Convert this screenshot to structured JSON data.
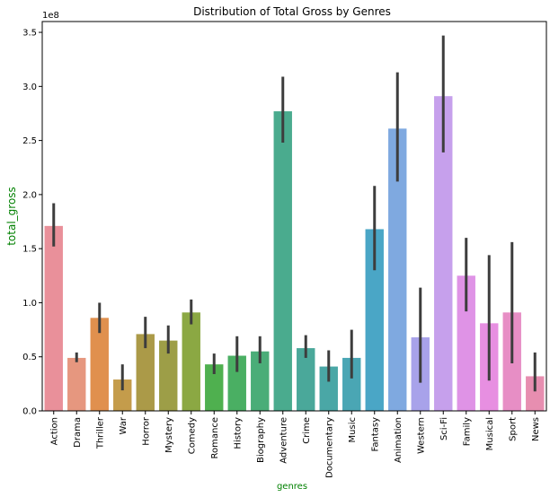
{
  "chart_data": {
    "type": "bar",
    "title": "Distribution of Total Gross by Genres",
    "xlabel": "genres",
    "ylabel": "total_gross",
    "offset_text": "1e8",
    "ylim": [
      0,
      3.6
    ],
    "yticks": [
      0.0,
      0.5,
      1.0,
      1.5,
      2.0,
      2.5,
      3.0,
      3.5
    ],
    "grid": false,
    "legend": "none",
    "categories": [
      "Action",
      "Drama",
      "Thriller",
      "War",
      "Horror",
      "Mystery",
      "Comedy",
      "Romance",
      "History",
      "Biography",
      "Adventure",
      "Crime",
      "Documentary",
      "Music",
      "Fantasy",
      "Animation",
      "Western",
      "Sci-Fi",
      "Family",
      "Musical",
      "Sport",
      "News"
    ],
    "values": [
      1.71,
      0.49,
      0.86,
      0.29,
      0.71,
      0.65,
      0.91,
      0.43,
      0.51,
      0.55,
      2.77,
      0.58,
      0.41,
      0.49,
      1.68,
      2.61,
      0.68,
      2.91,
      1.25,
      0.81,
      0.91,
      0.32
    ],
    "ci_low": [
      1.52,
      0.45,
      0.72,
      0.19,
      0.58,
      0.53,
      0.8,
      0.34,
      0.36,
      0.44,
      2.48,
      0.49,
      0.27,
      0.3,
      1.3,
      2.12,
      0.26,
      2.39,
      0.92,
      0.28,
      0.44,
      0.18
    ],
    "ci_high": [
      1.92,
      0.54,
      1.0,
      0.43,
      0.87,
      0.79,
      1.03,
      0.53,
      0.69,
      0.69,
      3.09,
      0.7,
      0.56,
      0.75,
      2.08,
      3.13,
      1.14,
      3.47,
      1.6,
      1.44,
      1.56,
      0.54
    ],
    "colors": [
      "#e9909a",
      "#e6977f",
      "#e0904e",
      "#c49c4b",
      "#ab9a48",
      "#9d9e47",
      "#8ba843",
      "#4fb04f",
      "#4aaf63",
      "#4aad78",
      "#4aab8e",
      "#4aa89a",
      "#4aa7a6",
      "#4aa6b4",
      "#4aa6c6",
      "#7fa9e0",
      "#a8a2ea",
      "#c6a0ec",
      "#df93e6",
      "#e78fe1",
      "#e78ec5",
      "#e78eb0"
    ]
  }
}
